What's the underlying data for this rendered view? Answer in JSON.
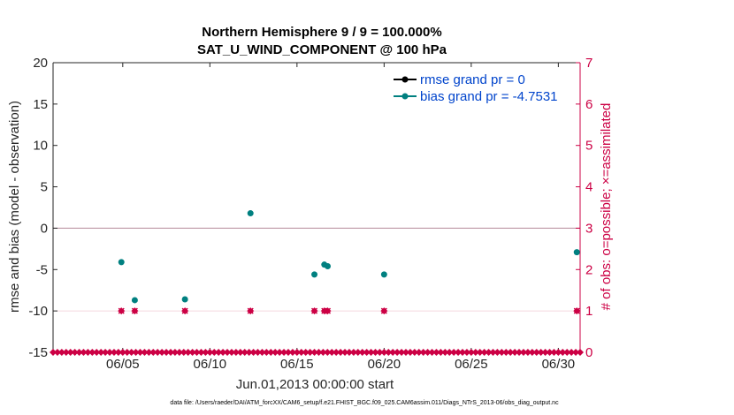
{
  "chart_data": {
    "type": "scatter",
    "title": "Northern Hemisphere 9 / 9 = 100.000%",
    "subtitle": "SAT_U_WIND_COMPONENT @ 100 hPa",
    "xlabel": "Jun.01,2013 00:00:00 start",
    "ylabel": "rmse and bias (model - observation)",
    "ylabel_right": "# of obs: o=possible; ×=assimilated",
    "xlim": [
      1,
      31.25
    ],
    "ylim": [
      -15,
      20
    ],
    "ylim_right": [
      0,
      7
    ],
    "x_ticks": [
      5,
      10,
      15,
      20,
      25,
      30
    ],
    "x_tick_labels": [
      "06/05",
      "06/10",
      "06/15",
      "06/20",
      "06/25",
      "06/30"
    ],
    "y_ticks": [
      -15,
      -10,
      -5,
      0,
      5,
      10,
      15,
      20
    ],
    "y_tick_labels": [
      "-15",
      "-10",
      "-5",
      "0",
      "5",
      "10",
      "15",
      "20"
    ],
    "y_right_ticks": [
      0,
      1,
      2,
      3,
      4,
      5,
      6,
      7
    ],
    "y_right_tick_labels": [
      "0",
      "1",
      "2",
      "3",
      "4",
      "5",
      "6",
      "7"
    ],
    "zero_line": 0,
    "grid": "horizontal at 0 and at right-axis 1",
    "legend_position": "top-right",
    "series": [
      {
        "name": "rmse grand pr = 0",
        "color": "#000000",
        "marker": "circle",
        "axis": "left",
        "x": [],
        "y": []
      },
      {
        "name": "bias grand pr = -4.7531",
        "color": "#008080",
        "marker": "circle",
        "axis": "left",
        "x": [
          4.92,
          5.69,
          8.57,
          12.33,
          16.0,
          16.57,
          16.76,
          20.0,
          31.06
        ],
        "y": [
          -4.1,
          -8.7,
          -8.6,
          1.8,
          -5.6,
          -4.4,
          -4.6,
          -5.6,
          -2.9
        ]
      },
      {
        "name": "obs possible",
        "color": "#cc0044",
        "marker": "circle",
        "axis": "right",
        "x": [
          4.92,
          5.69,
          8.57,
          12.33,
          16.0,
          16.57,
          16.76,
          20.0,
          31.06
        ],
        "y": [
          1,
          1,
          1,
          1,
          1,
          1,
          1,
          1,
          1
        ]
      },
      {
        "name": "obs assimilated",
        "color": "#cc0044",
        "marker": "x",
        "axis": "right",
        "x": [
          4.92,
          5.69,
          8.57,
          12.33,
          16.0,
          16.57,
          16.76,
          20.0,
          31.06
        ],
        "y": [
          1,
          1,
          1,
          1,
          1,
          1,
          1,
          1,
          1
        ]
      },
      {
        "name": "zero counts",
        "color": "#cc0044",
        "marker": "diamond",
        "axis": "right",
        "x_start": 1.0,
        "x_step": 0.25,
        "x_end": 31.25,
        "y": 0
      }
    ]
  },
  "footer": "data file: /Users/raeder/DAI/ATM_forcXX/CAM6_setup/f.e21.FHIST_BGC.f09_025.CAM6assim.011/Diags_NTrS_2013-06/obs_diag_output.nc"
}
